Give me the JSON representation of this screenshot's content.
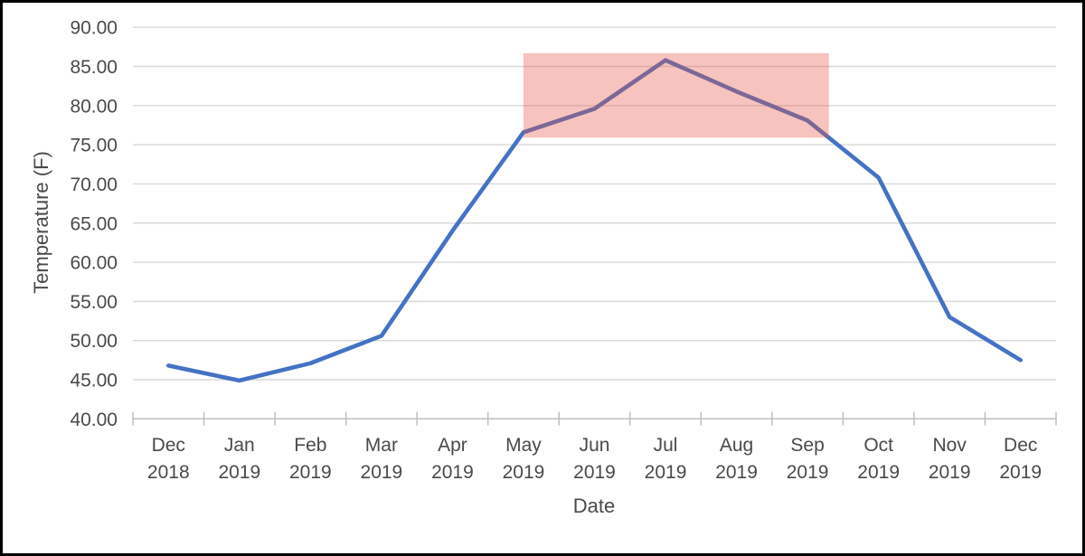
{
  "chart_data": {
    "type": "line",
    "title": "",
    "xlabel": "Date",
    "ylabel": "Temperature (F)",
    "categories": [
      "Dec 2018",
      "Jan 2019",
      "Feb 2019",
      "Mar 2019",
      "Apr 2019",
      "May 2019",
      "Jun 2019",
      "Jul 2019",
      "Aug 2019",
      "Sep 2019",
      "Oct 2019",
      "Nov 2019",
      "Dec 2019"
    ],
    "series": [
      {
        "name": "Temperature",
        "values": [
          46.8,
          44.9,
          47.1,
          50.6,
          64.0,
          76.6,
          79.6,
          85.8,
          81.8,
          78.1,
          70.8,
          53.0,
          47.5
        ]
      }
    ],
    "ylim": [
      40,
      90
    ],
    "ytick_step": 5,
    "ytick_decimals": 2,
    "grid": true,
    "legend": false,
    "colors": {
      "line": "#4472C4",
      "gridline": "#D9D9D9",
      "axis_line": "#BFBFBF",
      "axis_text": "#4a4a4a",
      "highlight_fill": "#E45245"
    },
    "highlight_region": {
      "name": "summer-highlight",
      "x_start_category": "May 2019",
      "x_start_offset_fraction": 0.0,
      "x_end_category": "Sep 2019",
      "x_end_offset_fraction": 0.3,
      "y_min": 75.9,
      "y_max": 86.7,
      "fill_opacity": 0.35
    }
  }
}
